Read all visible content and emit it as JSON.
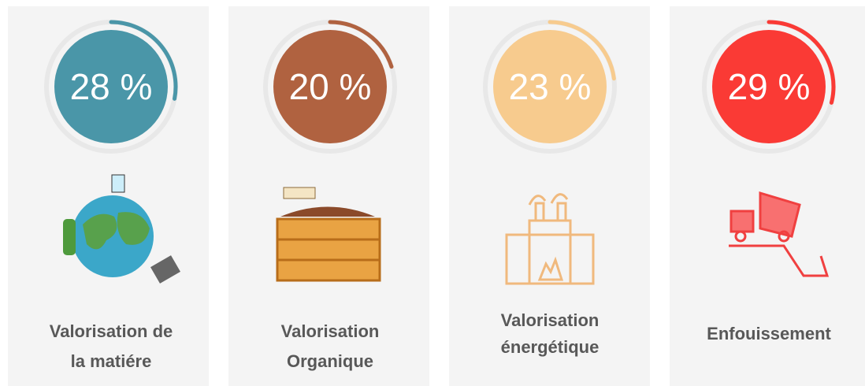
{
  "cards": [
    {
      "value": 28,
      "value_label": "28 %",
      "label_lines": [
        "Valorisation de",
        "la matiére"
      ],
      "color": "#4a96a8"
    },
    {
      "value": 20,
      "value_label": "20 %",
      "label_lines": [
        "Valorisation",
        "Organique"
      ],
      "color": "#b06240"
    },
    {
      "value": 23,
      "value_label": "23 %",
      "label_lines": [
        "Valorisation",
        "énergétique"
      ],
      "color": "#f7cb8e"
    },
    {
      "value": 29,
      "value_label": "29 %",
      "label_lines": [
        "Enfouissement"
      ],
      "color": "#fa3a35"
    }
  ]
}
